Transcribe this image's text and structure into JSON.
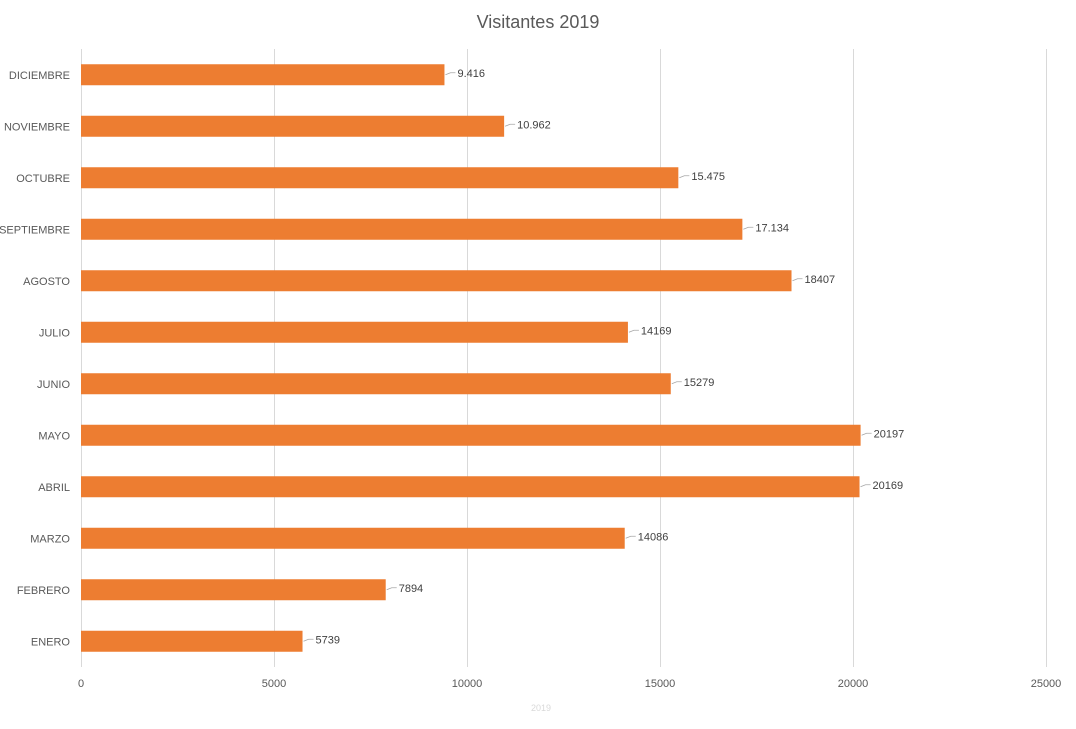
{
  "chart_data": {
    "type": "bar",
    "orientation": "horizontal",
    "title": "Visitantes 2019",
    "categories": [
      "ENERO",
      "FEBRERO",
      "MARZO",
      "ABRIL",
      "MAYO",
      "JUNIO",
      "JULIO",
      "AGOSTO",
      "SEPTIEMBRE",
      "OCTUBRE",
      "NOVIEMBRE",
      "DICIEMBRE"
    ],
    "series": [
      {
        "name": "2019",
        "values": [
          5739,
          7894,
          14086,
          20169,
          20197,
          15279,
          14169,
          18407,
          17134,
          15475,
          10962,
          9416
        ],
        "labels": [
          "5739",
          "7894",
          "14086",
          "20169",
          "20197",
          "15279",
          "14169",
          "18407",
          "17.134",
          "15.475",
          "10.962",
          "9.416"
        ]
      }
    ],
    "xlim": [
      0,
      25000
    ],
    "x_ticks": [
      0,
      5000,
      10000,
      15000,
      20000,
      25000
    ],
    "x_tick_labels": [
      "0",
      "5000",
      "10000",
      "15000",
      "20000",
      "25000"
    ],
    "grid": true,
    "legend": "bottom",
    "colors": {
      "bar": "#ED7D31",
      "grid": "#D9D9D9",
      "text": "#595959",
      "leader": "#A6A6A6"
    }
  }
}
